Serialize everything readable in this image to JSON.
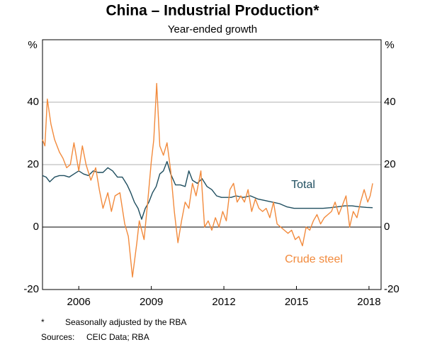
{
  "chart_data": {
    "type": "line",
    "title": "China – Industrial Production*",
    "subtitle": "Year-ended growth",
    "y_unit": "%",
    "footnote_marker": "*",
    "footnote": "Seasonally adjusted by the RBA",
    "sources_label": "Sources:",
    "sources": "CEIC Data; RBA",
    "xlim": [
      2005,
      2019
    ],
    "xticks": [
      {
        "value": 2006.5,
        "label": "2006"
      },
      {
        "value": 2009.5,
        "label": "2009"
      },
      {
        "value": 2012.5,
        "label": "2012"
      },
      {
        "value": 2015.5,
        "label": "2015"
      },
      {
        "value": 2018.5,
        "label": "2018"
      }
    ],
    "ylim": [
      -20,
      60
    ],
    "yticks": [
      -20,
      0,
      20,
      40
    ],
    "grid": true,
    "series": [
      {
        "name": "Total",
        "color": "#1f4e5f",
        "x": [
          2005.0,
          2005.15,
          2005.3,
          2005.5,
          2005.7,
          2005.9,
          2006.1,
          2006.3,
          2006.5,
          2006.7,
          2006.9,
          2007.1,
          2007.3,
          2007.5,
          2007.7,
          2007.9,
          2008.1,
          2008.3,
          2008.5,
          2008.65,
          2008.8,
          2008.95,
          2009.1,
          2009.25,
          2009.4,
          2009.55,
          2009.7,
          2009.85,
          2010.0,
          2010.15,
          2010.3,
          2010.5,
          2010.7,
          2010.9,
          2011.05,
          2011.2,
          2011.4,
          2011.6,
          2011.8,
          2012.0,
          2012.2,
          2012.4,
          2012.6,
          2012.8,
          2013.0,
          2013.3,
          2013.6,
          2013.9,
          2014.2,
          2014.5,
          2014.8,
          2015.1,
          2015.4,
          2015.7,
          2016.0,
          2016.3,
          2016.6,
          2016.9,
          2017.2,
          2017.5,
          2017.8,
          2018.1,
          2018.4,
          2018.65
        ],
        "values": [
          16.5,
          16,
          14.5,
          16,
          16.5,
          16.5,
          16,
          17,
          18,
          17,
          16.5,
          18,
          17.5,
          17.5,
          19,
          18,
          16,
          16,
          13.5,
          11,
          8,
          6,
          2.5,
          6,
          8,
          11,
          13,
          17,
          18,
          21,
          17,
          13.5,
          13.5,
          13,
          18,
          15,
          14,
          15.5,
          13,
          12,
          10,
          9.5,
          9.5,
          9.5,
          10,
          9.5,
          10,
          9,
          8.5,
          8,
          7.5,
          6.5,
          6,
          6,
          6,
          6,
          6,
          6.2,
          6.5,
          6.8,
          6.8,
          6.5,
          6.3,
          6.2
        ]
      },
      {
        "name": "Crude steel",
        "color": "#f28a3c",
        "x": [
          2005.0,
          2005.1,
          2005.2,
          2005.35,
          2005.5,
          2005.7,
          2005.85,
          2006.0,
          2006.15,
          2006.3,
          2006.5,
          2006.65,
          2006.8,
          2007.0,
          2007.2,
          2007.35,
          2007.5,
          2007.7,
          2007.85,
          2008.0,
          2008.2,
          2008.4,
          2008.55,
          2008.72,
          2008.9,
          2009.0,
          2009.2,
          2009.35,
          2009.5,
          2009.6,
          2009.72,
          2009.85,
          2010.0,
          2010.15,
          2010.3,
          2010.45,
          2010.6,
          2010.75,
          2010.9,
          2011.05,
          2011.2,
          2011.35,
          2011.55,
          2011.7,
          2011.85,
          2012.0,
          2012.15,
          2012.3,
          2012.45,
          2012.6,
          2012.75,
          2012.9,
          2013.05,
          2013.2,
          2013.35,
          2013.5,
          2013.65,
          2013.8,
          2013.95,
          2014.1,
          2014.25,
          2014.4,
          2014.55,
          2014.7,
          2014.85,
          2015.0,
          2015.15,
          2015.3,
          2015.45,
          2015.6,
          2015.75,
          2015.9,
          2016.05,
          2016.2,
          2016.35,
          2016.5,
          2016.65,
          2016.8,
          2016.95,
          2017.1,
          2017.25,
          2017.4,
          2017.55,
          2017.7,
          2017.85,
          2018.0,
          2018.15,
          2018.3,
          2018.45,
          2018.55,
          2018.65
        ],
        "values": [
          28,
          26,
          41,
          33,
          28,
          24,
          22,
          19,
          20,
          27,
          18,
          26,
          20,
          15,
          19,
          12,
          6,
          11,
          5,
          10,
          11,
          1,
          -3,
          -16,
          -5,
          2,
          -4,
          8,
          21,
          28,
          46,
          26,
          23,
          27,
          18,
          5,
          -5,
          2,
          8,
          6,
          14,
          10,
          18,
          0,
          2,
          -1,
          3,
          0,
          5,
          2,
          12,
          14,
          8,
          10,
          8,
          12,
          5,
          9,
          6,
          5,
          6,
          3,
          8,
          1,
          0,
          -1,
          -2,
          -1,
          -4,
          -3,
          -6,
          0,
          -1,
          2,
          4,
          1,
          3,
          4,
          5,
          8,
          4,
          7,
          10,
          0,
          5,
          3,
          8,
          12,
          8,
          10,
          14
        ]
      }
    ]
  }
}
